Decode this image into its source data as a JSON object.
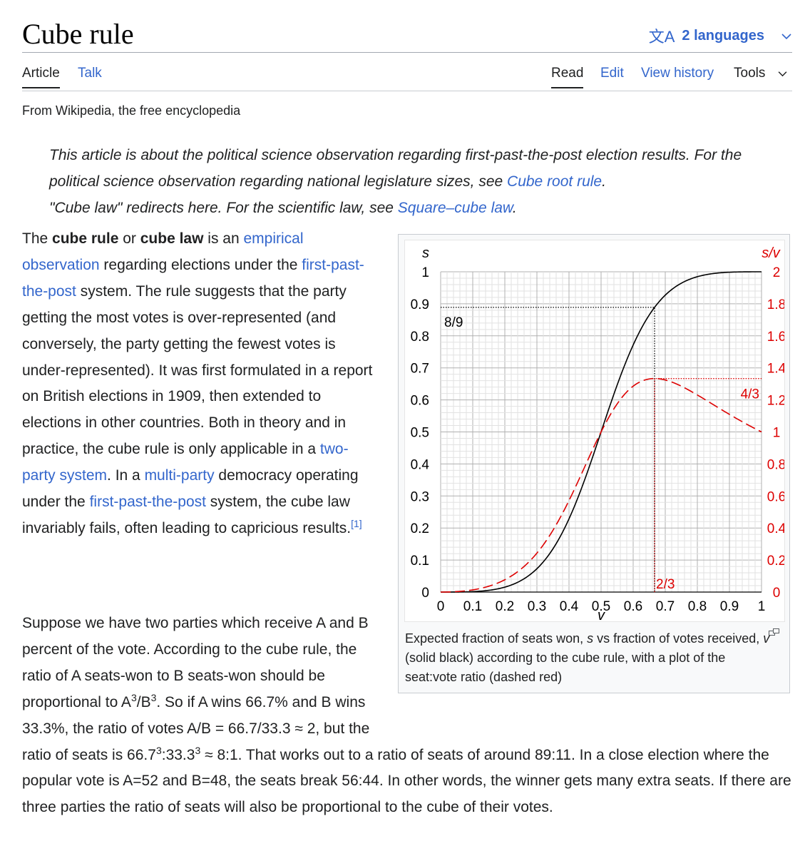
{
  "page": {
    "title": "Cube rule",
    "languages_label": "2 languages",
    "from": "From Wikipedia, the free encyclopedia"
  },
  "tabs": {
    "article": "Article",
    "talk": "Talk",
    "read": "Read",
    "edit": "Edit",
    "history": "View history",
    "tools": "Tools"
  },
  "hatnote": {
    "line1_text": "This article is about the political science observation regarding first-past-the-post election results. For the political science observation regarding national legislature sizes, see ",
    "line1_link": "Cube root rule",
    "line1_end": ".",
    "line2_text": "\"Cube law\" redirects here. For the scientific law, see ",
    "line2_link": "Square–cube law",
    "line2_end": "."
  },
  "p1": {
    "t1": "The ",
    "b1": "cube rule",
    "t2": " or ",
    "b2": "cube law",
    "t3": " is an ",
    "l1": "empirical observation",
    "t4": " regarding elections under the ",
    "l2": "first-past-the-post",
    "t5": " system. The rule suggests that the party getting the most votes is over-represented (and conversely, the party getting the fewest votes is under-represented). It was first formulated in a report on British elections in 1909, then extended to elections in other countries. Both in theory and in practice, the cube rule is only applicable in a ",
    "l3": "two-party system",
    "t6": ". In a ",
    "l4": "multi-party",
    "t7": " democracy operating under the ",
    "l5": "first-past-the-post",
    "t8": " system, the cube law invariably fails, often leading to capricious results.",
    "ref": "[1]"
  },
  "p2": {
    "t1": "Suppose we have two parties which receive A and B percent of the vote. According to the cube rule, the ratio of A seats-won to B seats-won should be proportional to A",
    "s1": "3",
    "t2": "/B",
    "s2": "3",
    "t3": ". So if A wins 66.7% and B wins 33.3%, the ratio of votes A/B = 66.7/33.3 ≈ 2, but the ratio of seats is 66.7",
    "s3": "3",
    "t4": ":33.3",
    "s4": "3",
    "t5": " ≈ 8:1. That works out to a ratio of seats of around 89:11. In a close election where the popular vote is A=52 and B=48, the seats break 56:44. In other words, the winner gets many extra seats. If there are three parties the ratio of seats will also be proportional to the cube of their votes."
  },
  "figure": {
    "caption_t1": "Expected fraction of seats won, ",
    "caption_s": "s",
    "caption_t2": " vs fraction of votes received, ",
    "caption_v": "v",
    "caption_t3": " (solid black) according to the cube rule, with a plot of the seat:vote ratio (dashed red)"
  },
  "chart_data": {
    "type": "line",
    "xlabel": "v",
    "ylabel_left": "s",
    "ylabel_right": "s/v",
    "xlim": [
      0,
      1
    ],
    "ylim_left": [
      0,
      1
    ],
    "ylim_right": [
      0,
      2
    ],
    "x_ticks": [
      "0",
      "0.1",
      "0.2",
      "0.3",
      "0.4",
      "0.5",
      "0.6",
      "0.7",
      "0.8",
      "0.9",
      "1"
    ],
    "y_left_ticks": [
      "0",
      "0.1",
      "0.2",
      "0.3",
      "0.4",
      "0.5",
      "0.6",
      "0.7",
      "0.8",
      "0.9",
      "1"
    ],
    "y_right_ticks": [
      "0",
      "0.2",
      "0.4",
      "0.6",
      "0.8",
      "1",
      "1.2",
      "1.4",
      "1.6",
      "1.8",
      "2"
    ],
    "grid": true,
    "series": [
      {
        "color": "#000000",
        "style": "solid",
        "axis": "left",
        "x": [
          0,
          0.05,
          0.1,
          0.15,
          0.2,
          0.25,
          0.3,
          0.35,
          0.4,
          0.45,
          0.5,
          0.55,
          0.6,
          0.65,
          0.7,
          0.75,
          0.8,
          0.85,
          0.9,
          0.95,
          1
        ],
        "y": [
          0,
          0.0001,
          0.0014,
          0.0054,
          0.0154,
          0.0357,
          0.0729,
          0.1347,
          0.2286,
          0.3541,
          0.5,
          0.6459,
          0.7714,
          0.8653,
          0.9271,
          0.9643,
          0.9846,
          0.9946,
          0.9986,
          0.9999,
          1
        ]
      },
      {
        "color": "#dd0000",
        "style": "dashed",
        "axis": "right",
        "x": [
          0,
          0.05,
          0.1,
          0.15,
          0.2,
          0.25,
          0.3,
          0.35,
          0.4,
          0.45,
          0.5,
          0.55,
          0.6,
          0.65,
          0.7,
          0.75,
          0.8,
          0.85,
          0.9,
          0.95,
          1
        ],
        "y": [
          0,
          0.0028,
          0.0136,
          0.0357,
          0.0769,
          0.1429,
          0.2428,
          0.385,
          0.5714,
          0.7868,
          1,
          1.1744,
          1.2857,
          1.3312,
          1.3244,
          1.2857,
          1.2308,
          1.1701,
          1.1096,
          1.0525,
          1
        ]
      }
    ],
    "annotations": [
      {
        "text": "8/9",
        "color": "#000000",
        "x": 0.6667,
        "y": 0.8889,
        "axis": "left"
      },
      {
        "text": "4/3",
        "color": "#dd0000",
        "x": 0.6667,
        "y": 1.3333,
        "axis": "right"
      },
      {
        "text": "2/3",
        "color": "#dd0000",
        "x": 0.6667,
        "y": 0
      }
    ]
  }
}
